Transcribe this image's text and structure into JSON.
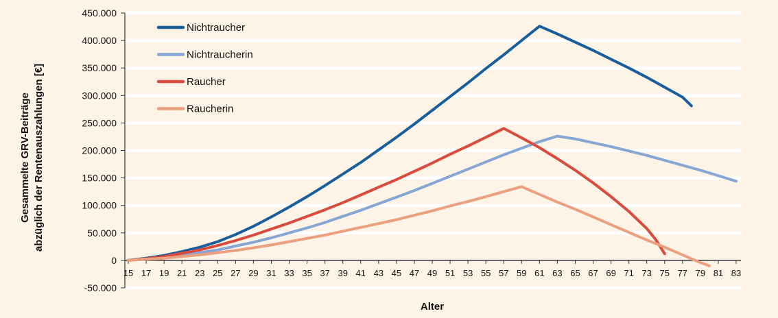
{
  "chart_data": {
    "type": "line",
    "xlabel": "Alter",
    "ylabel_lines": [
      "Gesammelte GRV-Beiträge",
      "abzüglich der Rentenauszahlungen [€]"
    ],
    "ylim": [
      -50000,
      450000
    ],
    "xlim": [
      15,
      83
    ],
    "grid": "horizontal",
    "legend_position": "top-left",
    "y_ticks": [
      {
        "value": 450000,
        "label": "450.000"
      },
      {
        "value": 400000,
        "label": "400.000"
      },
      {
        "value": 350000,
        "label": "350.000"
      },
      {
        "value": 300000,
        "label": "300.000"
      },
      {
        "value": 250000,
        "label": "250.000"
      },
      {
        "value": 200000,
        "label": "200.000"
      },
      {
        "value": 150000,
        "label": "150.000"
      },
      {
        "value": 100000,
        "label": "100.000"
      },
      {
        "value": 50000,
        "label": "50.000"
      },
      {
        "value": 0,
        "label": "0"
      },
      {
        "value": -50000,
        "label": "-50.000"
      }
    ],
    "x_ticks": [
      15,
      17,
      19,
      21,
      23,
      25,
      27,
      29,
      31,
      33,
      35,
      37,
      39,
      41,
      43,
      45,
      47,
      49,
      51,
      53,
      55,
      57,
      59,
      61,
      63,
      65,
      67,
      69,
      71,
      73,
      75,
      77,
      79,
      81,
      83
    ],
    "series": [
      {
        "name": "Nichtraucher",
        "color": "#1a5e9c",
        "points": [
          [
            15,
            0
          ],
          [
            17,
            4000
          ],
          [
            19,
            9000
          ],
          [
            21,
            16000
          ],
          [
            23,
            24000
          ],
          [
            25,
            34000
          ],
          [
            27,
            47000
          ],
          [
            29,
            62000
          ],
          [
            31,
            79000
          ],
          [
            33,
            97000
          ],
          [
            35,
            116000
          ],
          [
            37,
            136000
          ],
          [
            39,
            157000
          ],
          [
            41,
            178000
          ],
          [
            43,
            201000
          ],
          [
            45,
            224000
          ],
          [
            47,
            248000
          ],
          [
            49,
            273000
          ],
          [
            51,
            298000
          ],
          [
            53,
            323000
          ],
          [
            55,
            349000
          ],
          [
            57,
            374000
          ],
          [
            59,
            400000
          ],
          [
            61,
            426000
          ],
          [
            63,
            412000
          ],
          [
            65,
            397000
          ],
          [
            67,
            382000
          ],
          [
            69,
            366000
          ],
          [
            71,
            350000
          ],
          [
            73,
            333000
          ],
          [
            75,
            315000
          ],
          [
            77,
            297000
          ],
          [
            78,
            281000
          ]
        ]
      },
      {
        "name": "Nichtraucherin",
        "color": "#86a6d4",
        "points": [
          [
            15,
            0
          ],
          [
            17,
            2000
          ],
          [
            19,
            5000
          ],
          [
            21,
            9000
          ],
          [
            23,
            14000
          ],
          [
            25,
            19000
          ],
          [
            27,
            26000
          ],
          [
            29,
            33000
          ],
          [
            31,
            41000
          ],
          [
            33,
            50000
          ],
          [
            35,
            59000
          ],
          [
            37,
            69000
          ],
          [
            39,
            80000
          ],
          [
            41,
            91000
          ],
          [
            43,
            103000
          ],
          [
            45,
            115000
          ],
          [
            47,
            127000
          ],
          [
            49,
            140000
          ],
          [
            51,
            153000
          ],
          [
            53,
            166000
          ],
          [
            55,
            179000
          ],
          [
            57,
            192000
          ],
          [
            59,
            204000
          ],
          [
            61,
            216000
          ],
          [
            63,
            226000
          ],
          [
            65,
            221000
          ],
          [
            67,
            214000
          ],
          [
            69,
            207000
          ],
          [
            71,
            199000
          ],
          [
            73,
            191000
          ],
          [
            75,
            182000
          ],
          [
            77,
            173000
          ],
          [
            79,
            164000
          ],
          [
            81,
            154000
          ],
          [
            83,
            144000
          ]
        ]
      },
      {
        "name": "Raucher",
        "color": "#d94b3c",
        "points": [
          [
            15,
            0
          ],
          [
            17,
            3000
          ],
          [
            19,
            7000
          ],
          [
            21,
            13000
          ],
          [
            23,
            19000
          ],
          [
            25,
            27000
          ],
          [
            27,
            36000
          ],
          [
            29,
            46000
          ],
          [
            31,
            57000
          ],
          [
            33,
            68000
          ],
          [
            35,
            80000
          ],
          [
            37,
            92000
          ],
          [
            39,
            105000
          ],
          [
            41,
            119000
          ],
          [
            43,
            133000
          ],
          [
            45,
            147000
          ],
          [
            47,
            162000
          ],
          [
            49,
            177000
          ],
          [
            51,
            193000
          ],
          [
            53,
            208000
          ],
          [
            55,
            224000
          ],
          [
            57,
            240000
          ],
          [
            59,
            223000
          ],
          [
            61,
            205000
          ],
          [
            63,
            185000
          ],
          [
            65,
            164000
          ],
          [
            67,
            141000
          ],
          [
            69,
            116000
          ],
          [
            71,
            89000
          ],
          [
            73,
            58000
          ],
          [
            74,
            38000
          ],
          [
            75,
            12000
          ]
        ]
      },
      {
        "name": "Raucherin",
        "color": "#eba07f",
        "points": [
          [
            15,
            0
          ],
          [
            17,
            2000
          ],
          [
            19,
            4000
          ],
          [
            21,
            7000
          ],
          [
            23,
            10000
          ],
          [
            25,
            14000
          ],
          [
            27,
            18000
          ],
          [
            29,
            23000
          ],
          [
            31,
            28000
          ],
          [
            33,
            34000
          ],
          [
            35,
            40000
          ],
          [
            37,
            46000
          ],
          [
            39,
            53000
          ],
          [
            41,
            60000
          ],
          [
            43,
            67000
          ],
          [
            45,
            74000
          ],
          [
            47,
            82000
          ],
          [
            49,
            90000
          ],
          [
            51,
            99000
          ],
          [
            53,
            107000
          ],
          [
            55,
            116000
          ],
          [
            57,
            125000
          ],
          [
            59,
            134000
          ],
          [
            61,
            120000
          ],
          [
            63,
            106000
          ],
          [
            65,
            93000
          ],
          [
            67,
            79000
          ],
          [
            69,
            65000
          ],
          [
            71,
            51000
          ],
          [
            73,
            37000
          ],
          [
            75,
            24000
          ],
          [
            77,
            10000
          ],
          [
            79,
            -4000
          ],
          [
            80,
            -10000
          ]
        ]
      }
    ]
  }
}
